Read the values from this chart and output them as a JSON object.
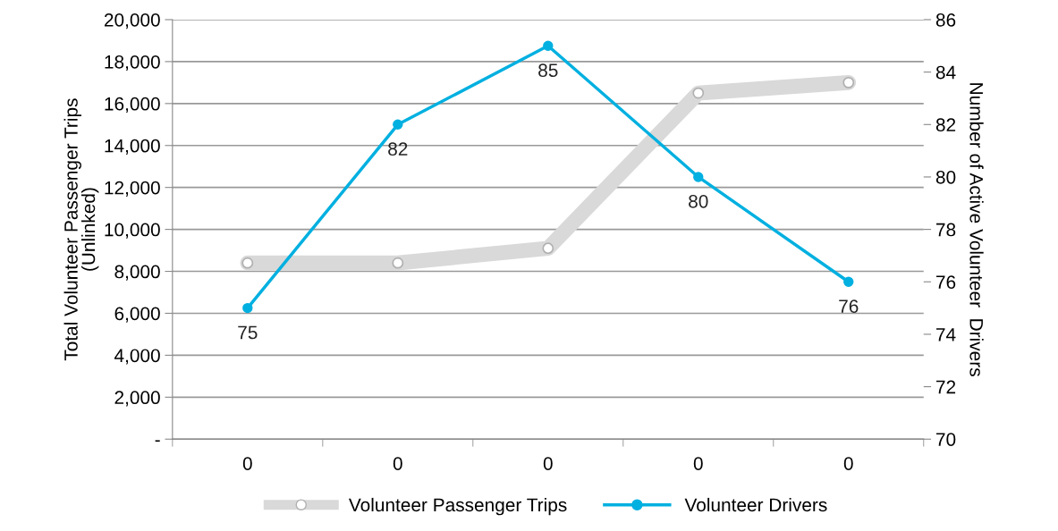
{
  "chart_data": {
    "type": "line",
    "categories": [
      "0",
      "0",
      "0",
      "0",
      "0"
    ],
    "ylabel": "Total Volunteer Passenger Trips\n(Unlinked)",
    "y2label": "Number of Active Volunteer  Drivers",
    "series": [
      {
        "name": "Volunteer Passenger Trips",
        "color": "#d9d9d9",
        "values": [
          8400,
          8400,
          9100,
          16500,
          17000
        ],
        "marker": "circle"
      },
      {
        "name": "Volunteer Drivers",
        "color": "#00b0e0",
        "values": [
          75,
          82,
          85,
          80,
          76
        ],
        "axis": "y2",
        "marker": "circle",
        "value_labels": [
          "75",
          "82",
          "85",
          "80",
          "76"
        ]
      }
    ],
    "ylim": [
      0,
      20000
    ],
    "yticks": [
      {
        "value": 0,
        "label": "-"
      },
      {
        "value": 2000,
        "label": "2,000"
      },
      {
        "value": 4000,
        "label": "4,000"
      },
      {
        "value": 6000,
        "label": "6,000"
      },
      {
        "value": 8000,
        "label": "8,000"
      },
      {
        "value": 10000,
        "label": "10,000"
      },
      {
        "value": 12000,
        "label": "12,000"
      },
      {
        "value": 14000,
        "label": "14,000"
      },
      {
        "value": 16000,
        "label": "16,000"
      },
      {
        "value": 18000,
        "label": "18,000"
      },
      {
        "value": 20000,
        "label": "20,000"
      }
    ],
    "y2lim": [
      70,
      86
    ],
    "y2ticks": [
      70,
      72,
      74,
      76,
      78,
      80,
      82,
      84,
      86
    ],
    "grid": "y",
    "legend": "bottom"
  }
}
